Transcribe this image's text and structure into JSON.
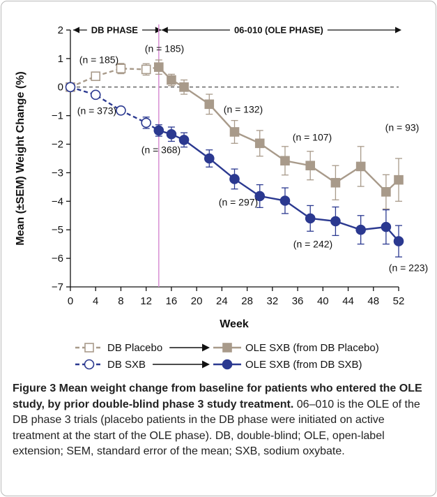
{
  "chart_data": {
    "type": "line",
    "x_label": "Week",
    "y_label": "Mean (±SEM) Weight Change (%)",
    "xlim": [
      0,
      52
    ],
    "xticks": [
      0,
      4,
      8,
      12,
      16,
      20,
      24,
      28,
      32,
      36,
      40,
      44,
      48,
      52
    ],
    "ylim": [
      -7,
      2
    ],
    "yticks": [
      {
        "value": -7,
        "label": "−7"
      },
      {
        "value": -6,
        "label": "−6"
      },
      {
        "value": -5,
        "label": "−5"
      },
      {
        "value": -4,
        "label": "−4"
      },
      {
        "value": -3,
        "label": "−3"
      },
      {
        "value": -2,
        "label": "−2"
      },
      {
        "value": -1,
        "label": "−1"
      },
      0,
      1,
      2
    ],
    "zero_line": true,
    "phases": [
      {
        "label": "DB PHASE",
        "start": 0,
        "end": 14
      },
      {
        "label": "06-010 (OLE PHASE)",
        "start": 14,
        "end": 52
      }
    ],
    "series": [
      {
        "name": "DB Placebo",
        "color": "#a89a8a",
        "marker": "square",
        "filled": false,
        "dashed": true,
        "x": [
          0,
          4,
          8,
          12
        ],
        "values": [
          0,
          0.38,
          0.65,
          0.62
        ],
        "errors": [
          0.05,
          0.12,
          0.18,
          0.2
        ]
      },
      {
        "name": "OLE SXB (from DB Placebo)",
        "color": "#a89a8a",
        "marker": "square",
        "filled": true,
        "dashed": false,
        "x": [
          14,
          16,
          18,
          22,
          26,
          30,
          34,
          38,
          42,
          46,
          50,
          52
        ],
        "values": [
          0.7,
          0.25,
          0,
          -0.6,
          -1.57,
          -1.97,
          -2.58,
          -2.75,
          -3.35,
          -2.78,
          -3.67,
          -3.25
        ],
        "errors": [
          0.25,
          0.2,
          0.25,
          0.35,
          0.4,
          0.45,
          0.5,
          0.5,
          0.6,
          0.7,
          0.6,
          0.75
        ]
      },
      {
        "name": "DB SXB",
        "color": "#2b3990",
        "marker": "circle",
        "filled": false,
        "dashed": true,
        "x": [
          0,
          4,
          8,
          12
        ],
        "values": [
          0,
          -0.27,
          -0.82,
          -1.25
        ],
        "errors": [
          0.05,
          0.1,
          0.12,
          0.2
        ]
      },
      {
        "name": "OLE SXB (from DB SXB)",
        "color": "#2b3990",
        "marker": "circle",
        "filled": true,
        "dashed": false,
        "x": [
          14,
          16,
          18,
          22,
          26,
          30,
          34,
          38,
          42,
          46,
          50,
          52
        ],
        "values": [
          -1.52,
          -1.65,
          -1.85,
          -2.5,
          -3.22,
          -3.82,
          -3.98,
          -4.6,
          -4.7,
          -5.0,
          -4.9,
          -5.4
        ],
        "errors": [
          0.2,
          0.25,
          0.25,
          0.3,
          0.35,
          0.4,
          0.45,
          0.45,
          0.5,
          0.5,
          0.6,
          0.55
        ]
      }
    ],
    "annotations": [
      "(n = 185)",
      "(n = 185)",
      "(n = 373)",
      "(n = 368)",
      "(n = 132)",
      "(n = 107)",
      "(n = 93)",
      "(n = 297)",
      "(n = 242)",
      "(n = 223)"
    ]
  },
  "caption": {
    "bold": "Figure 3 Mean weight change from baseline for patients who entered the OLE study, by prior double-blind phase 3 study treatment.",
    "text": "06–010 is the OLE of the DB phase 3 trials (placebo patients in the DB phase were initiated on active treatment at the start of the OLE phase). DB, double-blind; OLE, open-label extension; SEM, standard error of the mean; SXB, sodium oxybate."
  }
}
